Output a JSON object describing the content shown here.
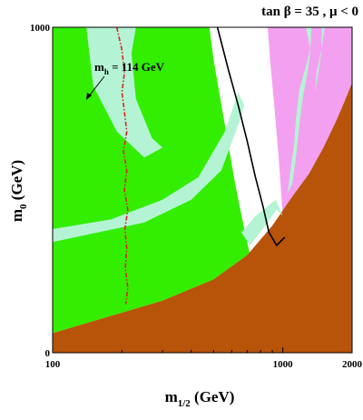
{
  "chart_data": {
    "type": "area",
    "title": "tan β = 35 , μ < 0",
    "xlabel": "m",
    "xlabel_sub": "1/2",
    "xlabel_unit": " (GeV)",
    "ylabel": "m",
    "ylabel_sub": "0",
    "ylabel_unit": " (GeV)",
    "xlim": [
      100,
      2000
    ],
    "ylim": [
      0,
      1000
    ],
    "x_ticks": [
      {
        "value": 100,
        "label": "100"
      },
      {
        "value": 1000,
        "label": "1000"
      },
      {
        "value": 2000,
        "label": "2000"
      }
    ],
    "y_ticks": [
      {
        "value": 0,
        "label": "0"
      },
      {
        "value": 1000,
        "label": "1000"
      }
    ],
    "grid": false,
    "legend": "none",
    "annotations": [
      {
        "label": "m",
        "sub": "h",
        "rest": " = 114 GeV"
      }
    ],
    "colors": {
      "green_region": "#33ee00",
      "pink_region": "#f4a0f0",
      "brown_region": "#b8530a",
      "cosmology_band": "#b4f4d4",
      "higgs_line": "#e02020",
      "boundary_line": "#000000"
    },
    "regions": {
      "brown": [
        [
          100,
          60
        ],
        [
          300,
          160
        ],
        [
          500,
          225
        ],
        [
          700,
          300
        ],
        [
          900,
          390
        ],
        [
          1100,
          480
        ],
        [
          1300,
          550
        ],
        [
          1500,
          630
        ],
        [
          1700,
          710
        ],
        [
          1850,
          770
        ],
        [
          2000,
          830
        ],
        [
          2000,
          0
        ],
        [
          100,
          0
        ]
      ],
      "pink": [
        [
          860,
          1000
        ],
        [
          2000,
          1000
        ],
        [
          2000,
          830
        ],
        [
          1850,
          770
        ],
        [
          1700,
          710
        ],
        [
          1500,
          630
        ],
        [
          1300,
          550
        ],
        [
          1100,
          480
        ],
        [
          1000,
          420
        ],
        [
          960,
          600
        ],
        [
          920,
          750
        ],
        [
          880,
          900
        ]
      ],
      "green": [
        [
          100,
          1000
        ],
        [
          480,
          1000
        ],
        [
          500,
          900
        ],
        [
          560,
          700
        ],
        [
          620,
          520
        ],
        [
          680,
          380
        ],
        [
          720,
          300
        ],
        [
          700,
          300
        ],
        [
          500,
          225
        ],
        [
          300,
          160
        ],
        [
          100,
          60
        ]
      ]
    },
    "bands": [
      [
        [
          140,
          1000
        ],
        [
          230,
          1000
        ],
        [
          220,
          920
        ],
        [
          230,
          780
        ],
        [
          270,
          660
        ],
        [
          300,
          630
        ],
        [
          250,
          600
        ],
        [
          190,
          680
        ],
        [
          150,
          820
        ]
      ],
      [
        [
          100,
          340
        ],
        [
          250,
          400
        ],
        [
          400,
          470
        ],
        [
          540,
          560
        ],
        [
          640,
          700
        ],
        [
          680,
          760
        ],
        [
          640,
          800
        ],
        [
          560,
          680
        ],
        [
          430,
          540
        ],
        [
          300,
          470
        ],
        [
          180,
          410
        ],
        [
          100,
          380
        ]
      ],
      [
        [
          660,
          370
        ],
        [
          720,
          330
        ],
        [
          860,
          400
        ],
        [
          940,
          440
        ],
        [
          1000,
          420
        ],
        [
          930,
          470
        ],
        [
          860,
          450
        ],
        [
          760,
          420
        ],
        [
          700,
          390
        ]
      ],
      [
        [
          1260,
          1000
        ],
        [
          1330,
          1000
        ],
        [
          1320,
          940
        ],
        [
          1260,
          880
        ],
        [
          1180,
          810
        ],
        [
          1140,
          720
        ],
        [
          1120,
          640
        ],
        [
          1080,
          560
        ],
        [
          1050,
          490
        ],
        [
          1100,
          520
        ],
        [
          1140,
          600
        ],
        [
          1180,
          700
        ],
        [
          1220,
          780
        ],
        [
          1280,
          860
        ],
        [
          1320,
          930
        ]
      ],
      [
        [
          1480,
          1000
        ],
        [
          1520,
          1000
        ],
        [
          1480,
          940
        ],
        [
          1400,
          860
        ],
        [
          1380,
          800
        ],
        [
          1420,
          850
        ],
        [
          1470,
          920
        ]
      ]
    ],
    "series": [
      {
        "values": [
          [
            190,
            1000
          ],
          [
            200,
            930
          ],
          [
            205,
            860
          ],
          [
            200,
            800
          ],
          [
            205,
            740
          ],
          [
            210,
            680
          ],
          [
            203,
            620
          ],
          [
            210,
            560
          ],
          [
            205,
            500
          ],
          [
            212,
            440
          ],
          [
            206,
            380
          ],
          [
            210,
            320
          ],
          [
            207,
            260
          ],
          [
            212,
            200
          ],
          [
            208,
            150
          ]
        ]
      },
      {
        "values": [
          [
            520,
            1000
          ],
          [
            580,
            870
          ],
          [
            640,
            760
          ],
          [
            700,
            650
          ],
          [
            760,
            540
          ],
          [
            820,
            450
          ],
          [
            870,
            370
          ],
          [
            940,
            330
          ],
          [
            1020,
            355
          ]
        ]
      }
    ]
  }
}
